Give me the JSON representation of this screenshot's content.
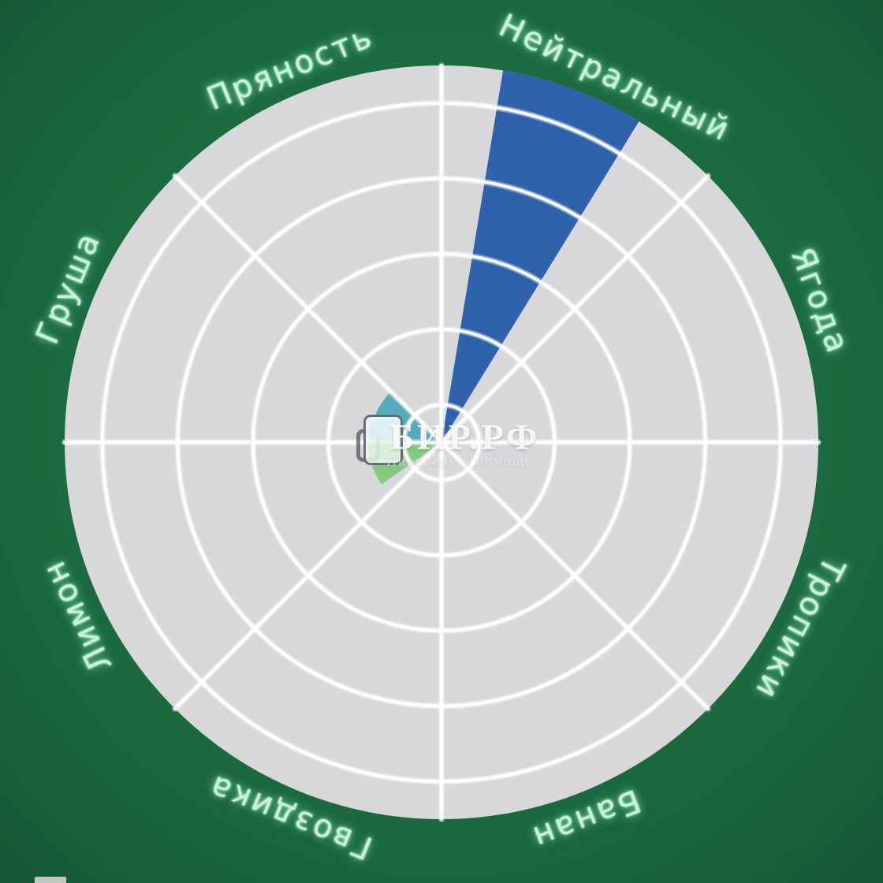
{
  "page": {
    "background_color": "#1d6c40",
    "description": "Polar bar (rose) flavor profile chart on green background"
  },
  "watermark": {
    "title": "БИР.РФ",
    "subtitle": "Пивовару в помощь",
    "icon": "beer-mug-icon"
  },
  "chart_data": {
    "type": "bar",
    "polar": true,
    "title": "",
    "categories": [
      "Нейтральный",
      "Пряность",
      "Груша",
      "Лимон",
      "Гвоздика",
      "Банан",
      "Тропики",
      "Ягода"
    ],
    "values": [
      5,
      0,
      0.95,
      0.97,
      0,
      0,
      0,
      0
    ],
    "label_angles_deg": [
      64.5,
      112,
      157.5,
      205.5,
      248,
      291,
      332.5,
      20.5
    ],
    "rlim": [
      0,
      5
    ],
    "ring_values": [
      0.5,
      1.5,
      2.5,
      3.5,
      4.5
    ],
    "spoke_angles_deg": [
      0,
      45,
      90,
      135,
      180,
      225,
      270,
      315
    ],
    "grid": true,
    "legend": false,
    "bars": [
      {
        "category": "Нейтральный",
        "value": 5,
        "start_deg": 58.4,
        "end_deg": 80.6,
        "color": "#2e63ab"
      },
      {
        "category": "Груша",
        "value": 0.95,
        "start_deg": 136,
        "end_deg": 181,
        "color": "#58abba"
      },
      {
        "category": "Лимон",
        "value": 0.97,
        "start_deg": 181,
        "end_deg": 215,
        "color": "#85c880"
      }
    ],
    "colors": {
      "disk": "#d8d8db",
      "grid": "#ffffff",
      "label_text": "#c7f3d8",
      "background": "#1d6c40"
    }
  }
}
